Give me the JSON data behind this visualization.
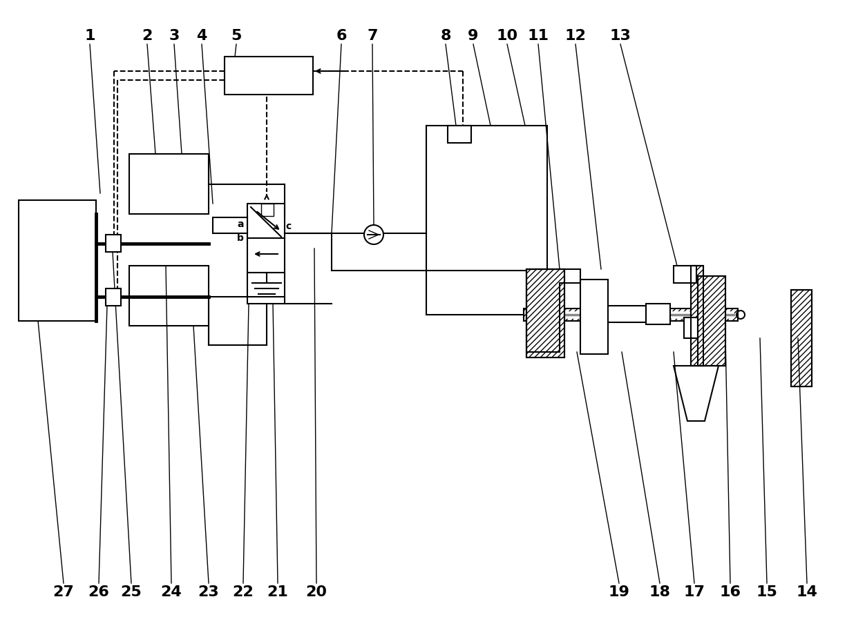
{
  "bg_color": "#ffffff",
  "figsize": [
    12.39,
    8.94
  ],
  "dpi": 100,
  "labels_top": [
    [
      "1",
      130,
      52
    ],
    [
      "2",
      213,
      52
    ],
    [
      "3",
      252,
      52
    ],
    [
      "4",
      292,
      52
    ],
    [
      "5",
      342,
      52
    ],
    [
      "6",
      494,
      52
    ],
    [
      "7",
      539,
      52
    ],
    [
      "8",
      645,
      52
    ],
    [
      "9",
      685,
      52
    ],
    [
      "10",
      734,
      52
    ],
    [
      "11",
      779,
      52
    ],
    [
      "12",
      833,
      52
    ],
    [
      "13",
      898,
      52
    ]
  ],
  "labels_bot": [
    [
      "27",
      92,
      858
    ],
    [
      "26",
      143,
      858
    ],
    [
      "25",
      190,
      858
    ],
    [
      "24",
      248,
      858
    ],
    [
      "23",
      302,
      858
    ],
    [
      "22",
      352,
      858
    ],
    [
      "21",
      402,
      858
    ],
    [
      "20",
      458,
      858
    ],
    [
      "19",
      896,
      858
    ],
    [
      "18",
      955,
      858
    ],
    [
      "17",
      1005,
      858
    ],
    [
      "16",
      1057,
      858
    ],
    [
      "15",
      1110,
      858
    ],
    [
      "14",
      1168,
      858
    ]
  ]
}
